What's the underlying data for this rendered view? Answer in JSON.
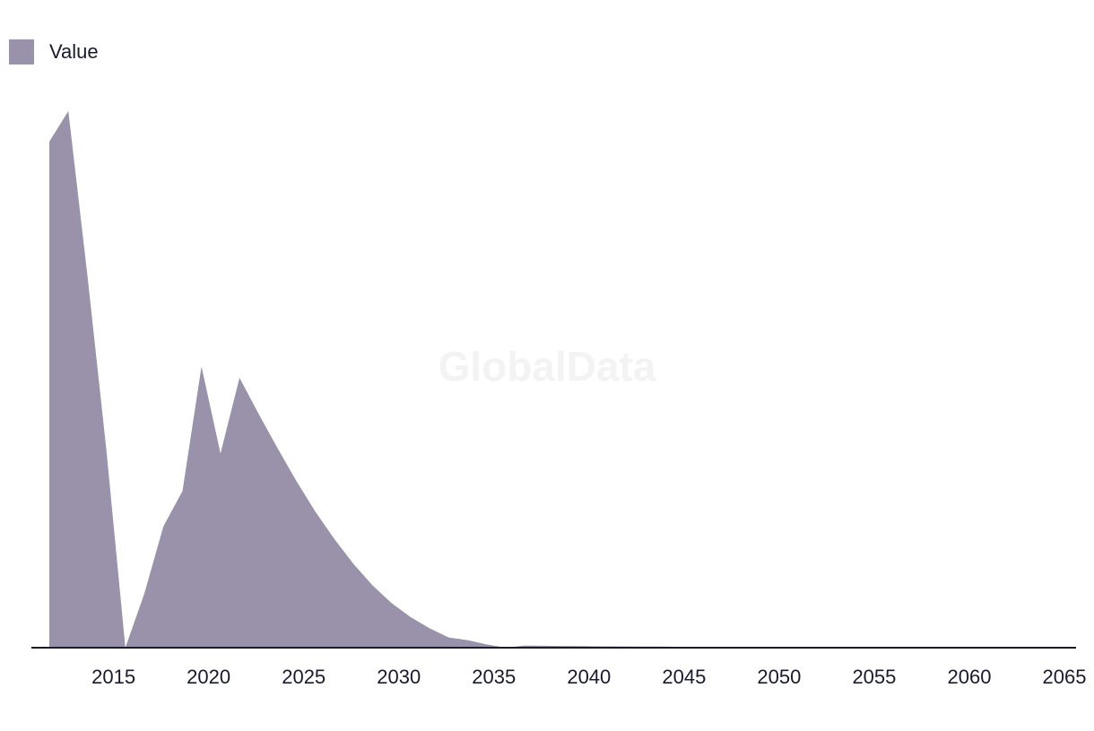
{
  "watermark": "GlobalData",
  "colors": {
    "area": "#9a91aa",
    "axis": "#1a1a2e",
    "watermark": "#f3f3f3"
  },
  "chart_data": {
    "type": "area",
    "title": "",
    "xlabel": "",
    "ylabel": "",
    "legend_position": "top-left",
    "grid": false,
    "xlim": [
      2012,
      2065
    ],
    "ylim": [
      0,
      100
    ],
    "xticks": [
      2015,
      2020,
      2025,
      2030,
      2035,
      2040,
      2045,
      2050,
      2055,
      2060,
      2065
    ],
    "series": [
      {
        "name": "Value",
        "x": [
          2012,
          2013,
          2014,
          2015,
          2016,
          2017,
          2018,
          2019,
          2020,
          2021,
          2022,
          2023,
          2024,
          2025,
          2026,
          2027,
          2028,
          2029,
          2030,
          2031,
          2032,
          2033,
          2034,
          2035,
          2036,
          2037,
          2038,
          2039,
          2040,
          2041,
          2042,
          2043,
          2044,
          2045,
          2046,
          2047,
          2048,
          2049,
          2050,
          2051,
          2052,
          2053,
          2054,
          2055,
          2056,
          2057,
          2058,
          2059,
          2060,
          2061,
          2062,
          2063,
          2064,
          2065
        ],
        "values": [
          94.3,
          100,
          69.5,
          36.9,
          0,
          10.1,
          22.6,
          29.2,
          52.4,
          36.2,
          50.3,
          43.6,
          37.2,
          31.0,
          25.3,
          20.2,
          15.6,
          11.6,
          8.3,
          5.7,
          3.6,
          1.9,
          1.4,
          0.6,
          0,
          -0.6,
          -1.1,
          -1.5,
          -1.9,
          -2.2,
          -2.5,
          -2.7,
          -2.9,
          -3.1,
          -3.3,
          -3.4,
          -3.6,
          -3.7,
          -3.8,
          -3.9,
          -4.0,
          -4.0,
          -4.1,
          -4.2,
          -4.3,
          -4.3,
          -4.4,
          -4.4,
          -4.5,
          -4.5,
          -4.6,
          -4.6,
          -4.7,
          -4.7
        ]
      }
    ]
  }
}
